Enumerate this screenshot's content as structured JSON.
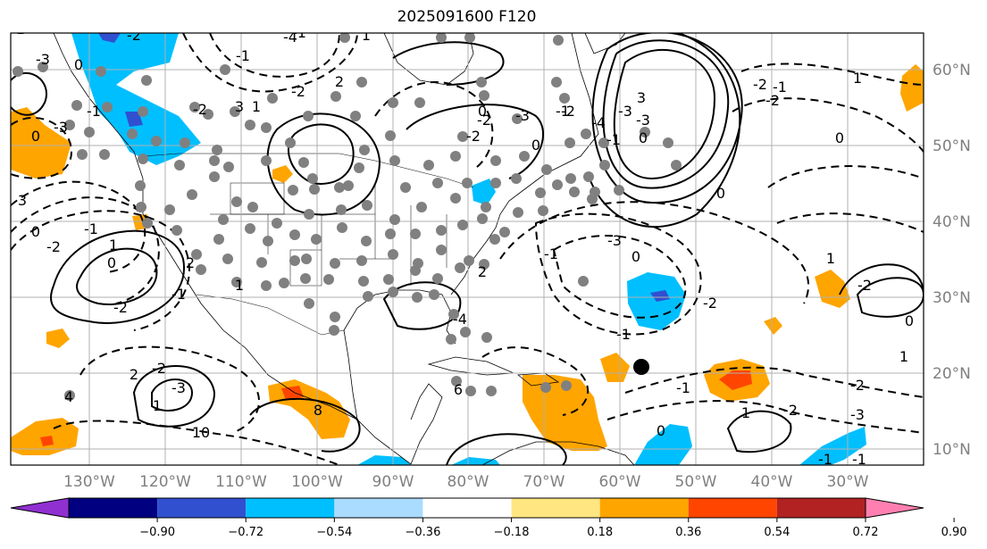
{
  "title": "2025091600 F120",
  "map": {
    "lon_ticks": [
      "130°W",
      "120°W",
      "110°W",
      "100°W",
      "90°W",
      "80°W",
      "70°W",
      "60°W",
      "50°W",
      "40°W",
      "30°W"
    ],
    "lat_ticks": [
      "60°N",
      "50°N",
      "40°N",
      "30°N",
      "20°N",
      "10°N"
    ],
    "contour_labels": [
      "-4",
      "-2",
      "-3",
      "2",
      "-1",
      "3",
      "0",
      "-3",
      "-2",
      "1",
      "-2",
      "-1",
      "0",
      "3",
      "0",
      "-2",
      "-1",
      "0",
      "1",
      "-2",
      "2",
      "-1",
      "1",
      "-2",
      "-3",
      "1",
      "2",
      "4",
      "10",
      "8",
      "6",
      "2",
      "-4",
      "-3",
      "-2",
      "-1",
      "-3",
      "0",
      "-2",
      "-1",
      "-1",
      "0",
      "-2",
      "-1",
      "-1",
      "-3",
      "-2",
      "0",
      "1",
      "-2",
      "1",
      "1",
      "2",
      "3",
      "0",
      "-1",
      "-4",
      "-2",
      "-3",
      "-3",
      "-2",
      "-1",
      "-2",
      "1",
      "0",
      "0",
      "-1",
      "-1",
      "1",
      "0",
      "-2",
      "0",
      "-1"
    ],
    "colors": {
      "neg_090": "#9030d0",
      "neg_072": "#000080",
      "neg_054": "#3050d0",
      "neg_036": "#00bfff",
      "neg_018": "#aadcff",
      "neutral": "#ffffff",
      "pos_018": "#ffe680",
      "pos_036": "#ffa500",
      "pos_054": "#ff4500",
      "pos_072": "#b22222",
      "pos_090": "#ff80b0",
      "dots": "#808080",
      "center_dot": "#000000"
    }
  },
  "colorbar": {
    "ticks": [
      "−0.90",
      "−0.72",
      "−0.54",
      "−0.36",
      "−0.18",
      "0.18",
      "0.36",
      "0.54",
      "0.72",
      "0.90"
    ],
    "segment_colors": [
      "#9030d0",
      "#000080",
      "#3050d0",
      "#00bfff",
      "#aadcff",
      "#ffffff",
      "#ffe680",
      "#ffa500",
      "#ff4500",
      "#b22222",
      "#ff80b0"
    ]
  }
}
